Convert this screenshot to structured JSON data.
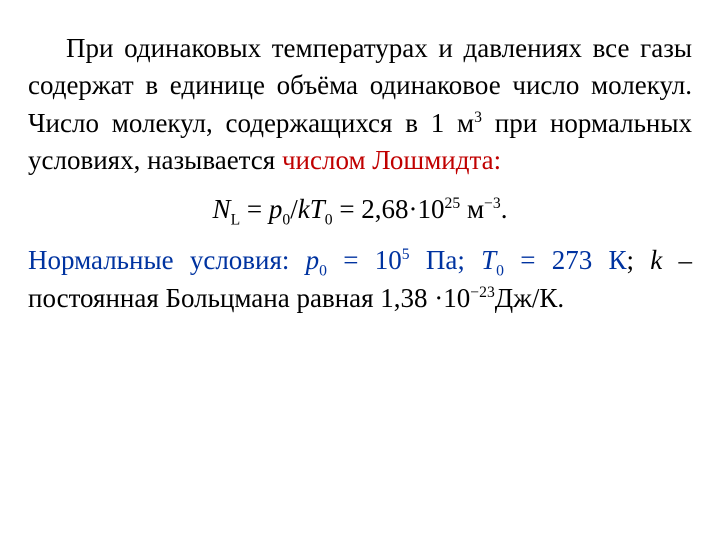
{
  "colors": {
    "text": "#000000",
    "term_red": "#c00000",
    "heading_blue": "#0033a0",
    "background": "#ffffff"
  },
  "typography": {
    "font_family": "Times New Roman",
    "body_fontsize_pt": 20,
    "line_height": 1.38
  },
  "para1": {
    "a": "При одинаковых температурах и давлениях все газы содержат в единице объёма  одинаковое число молекул. Число молекул, содержащихся в 1 м",
    "sup3": "3",
    "b": " при нормальных условиях, называется ",
    "term": "числом Лошмидта:"
  },
  "formula": {
    "N": "N",
    "Lsub": "L",
    "eq1": " = ",
    "p": "p",
    "zero1": "0",
    "slash": "/",
    "k": "k",
    "T": "T",
    "zero2": "0",
    "eq2": " = 2,68·10",
    "exp25": "25",
    "unit_m": " м",
    "exp_neg3": "−3",
    "dot": "."
  },
  "para2": {
    "heading": "Нормальные условия",
    "colon": ": ",
    "p": "p",
    "zero1": "0",
    "eqP": " = 10",
    "exp5": "5",
    "Pa": " Па; ",
    "T": "T",
    "zero2": "0",
    "eqT": " = 273 К",
    "semi": "; ",
    "k": "k",
    "rest_a": " – постоянная Больцмана равная 1,38 ·10",
    "exp_neg23": "−23",
    "rest_b": "Дж/К."
  }
}
